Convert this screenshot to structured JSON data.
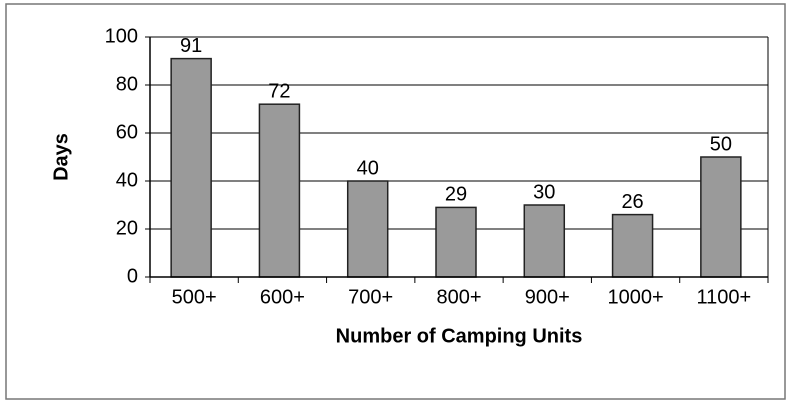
{
  "chart_data": {
    "type": "bar",
    "x_label": "Number of Camping Units",
    "y_label": "Days",
    "categories": [
      "500+",
      "600+",
      "700+",
      "800+",
      "900+",
      "1000+",
      "1100+"
    ],
    "values": [
      91,
      72,
      40,
      29,
      30,
      26,
      50
    ],
    "color": "#9a9a9a",
    "ylim": [
      0,
      100
    ],
    "yticks": [
      0,
      20,
      40,
      60,
      80,
      100
    ],
    "grid": true
  }
}
